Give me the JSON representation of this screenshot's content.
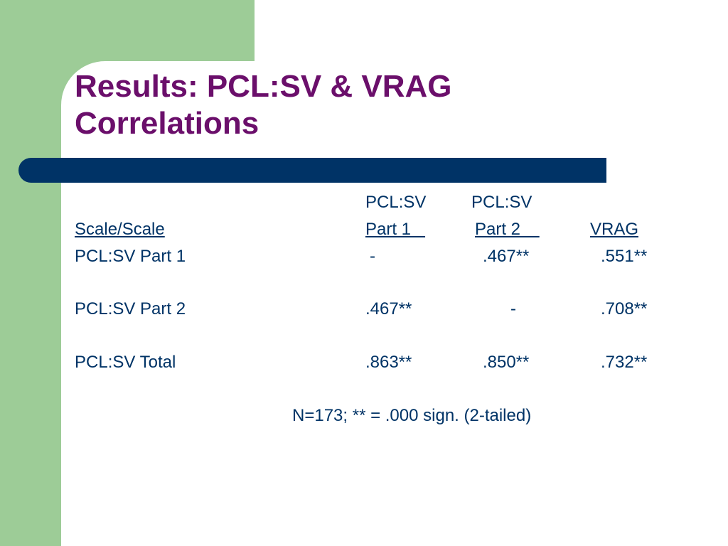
{
  "slide": {
    "title_line1": "Results: PCL:SV & VRAG",
    "title_line2": "Correlations"
  },
  "table": {
    "header_top": {
      "col1": "PCL:SV",
      "col2": "PCL:SV"
    },
    "header": {
      "row_label": "Scale/Scale",
      "col1": "Part 1   ",
      "col2": "Part 2    ",
      "col3": "VRAG"
    },
    "rows": [
      {
        "label": "PCL:SV Part 1",
        "c1": "-",
        "c2": ".467**",
        "c3": ".551**"
      },
      {
        "label": "PCL:SV Part 2",
        "c1": ".467**",
        "c2": "-",
        "c3": ".708**"
      },
      {
        "label": "PCL:SV Total",
        "c1": ".863**",
        "c2": ".850**",
        "c3": ".732**"
      }
    ]
  },
  "footnote": "N=173; ** = .000 sign. (2-tailed)",
  "colors": {
    "background_green": "#9dcc97",
    "title": "#6b0f6b",
    "bar": "#003366",
    "text": "#003366"
  }
}
